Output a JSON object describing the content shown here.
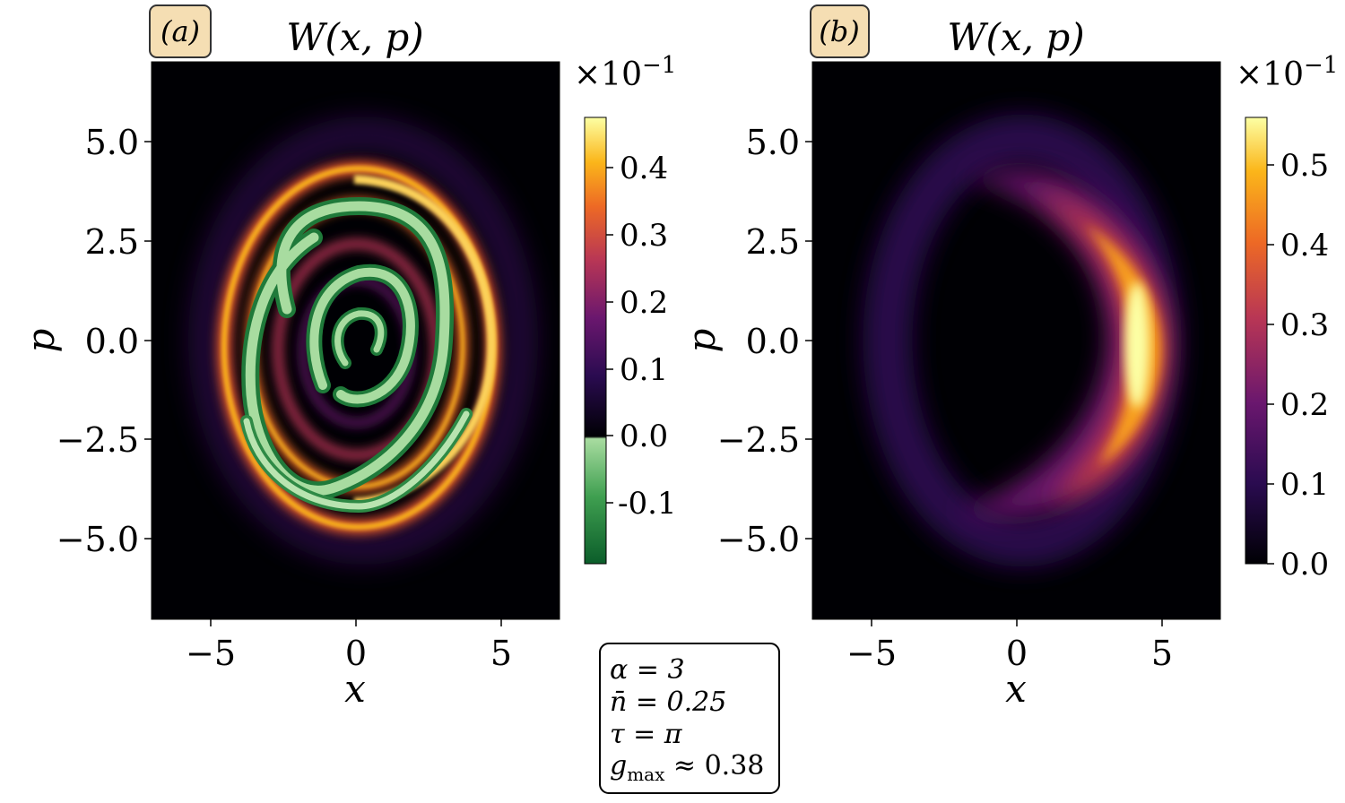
{
  "panels": [
    {
      "label": "(a)",
      "title": "W(x, p)",
      "multiplier": "×10",
      "multiplier_exp": "−1",
      "xlabel": "x",
      "ylabel": "p",
      "xticks": [
        "−5",
        "0",
        "5"
      ],
      "yticks": [
        "5.0",
        "2.5",
        "0.0",
        "−2.5",
        "−5.0"
      ],
      "colorbar_ticks": [
        "0.4",
        "0.3",
        "0.2",
        "0.1",
        "0.0",
        "-0.1"
      ]
    },
    {
      "label": "(b)",
      "title": "W(x, p)",
      "multiplier": "×10",
      "multiplier_exp": "−1",
      "xlabel": "x",
      "ylabel": "p",
      "xticks": [
        "−5",
        "0",
        "5"
      ],
      "yticks": [
        "5.0",
        "2.5",
        "0.0",
        "−2.5",
        "−5.0"
      ],
      "colorbar_ticks": [
        "0.5",
        "0.4",
        "0.3",
        "0.2",
        "0.1",
        "0.0"
      ]
    }
  ],
  "params": {
    "line1": "α = 3",
    "line2": "n̄ = 0.25",
    "line3": "τ = π",
    "line4_a": "g",
    "line4_sub": "max",
    "line4_b": " ≈ 0.38"
  },
  "chart_data": [
    {
      "type": "heatmap",
      "title": "W(x, p)",
      "xlabel": "x",
      "ylabel": "p",
      "xlim": [
        -7,
        7
      ],
      "ylim": [
        -7,
        7
      ],
      "xticks": [
        -5,
        0,
        5
      ],
      "yticks": [
        5.0,
        2.5,
        0.0,
        -2.5,
        -5.0
      ],
      "colorbar": {
        "range": [
          -0.17,
          0.47
        ],
        "ticks": [
          0.4,
          0.3,
          0.2,
          0.1,
          0.0,
          -0.1
        ],
        "scale": "×10^-1",
        "colormaps": [
          "inferno (positive)",
          "green (negative)"
        ]
      },
      "description_values": {
        "spiral_arms_positive_max": 0.45,
        "negative_min": -0.17
      }
    },
    {
      "type": "heatmap",
      "title": "W(x, p)",
      "xlabel": "x",
      "ylabel": "p",
      "xlim": [
        -7,
        7
      ],
      "ylim": [
        -7,
        7
      ],
      "xticks": [
        -5,
        0,
        5
      ],
      "yticks": [
        5.0,
        2.5,
        0.0,
        -2.5,
        -5.0
      ],
      "colorbar": {
        "range": [
          0.0,
          0.56
        ],
        "ticks": [
          0.5,
          0.4,
          0.3,
          0.2,
          0.1,
          0.0
        ],
        "scale": "×10^-1",
        "colormaps": [
          "inferno"
        ]
      },
      "description_values": {
        "crescent_peak": 0.55,
        "peak_location": [
          4.2,
          0.0
        ]
      }
    }
  ]
}
